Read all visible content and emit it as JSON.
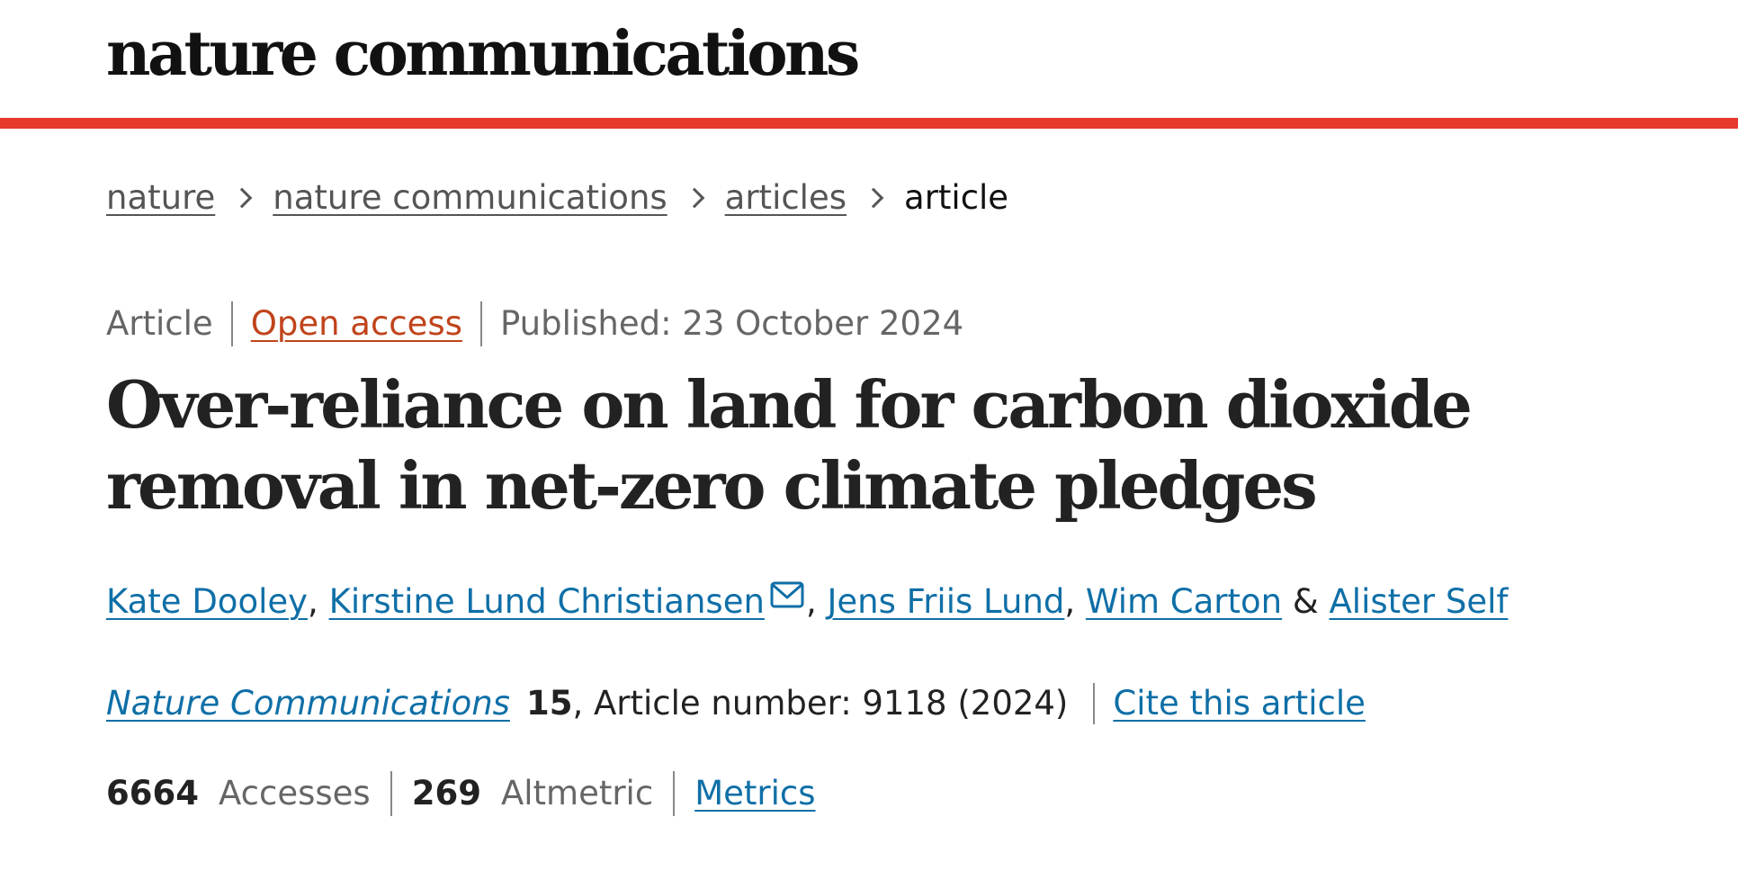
{
  "header": {
    "logo_text": "nature communications",
    "accent_color": "#e8392f"
  },
  "breadcrumb": {
    "items": [
      "nature",
      "nature communications",
      "articles"
    ],
    "current": "article"
  },
  "meta": {
    "type": "Article",
    "open_access": "Open access",
    "published": "Published: 23 October 2024"
  },
  "title": "Over-reliance on land for carbon dioxide removal in net-zero climate pledges",
  "authors": {
    "list": [
      "Kate Dooley",
      "Kirstine Lund Christiansen",
      "Jens Friis Lund",
      "Wim Carton",
      "Alister Self"
    ],
    "comma": ",",
    "ampersand": "&",
    "contact_icon": "mail-icon"
  },
  "citation": {
    "journal": "Nature Communications",
    "volume": "15",
    "article_number": ", Article number: 9118 (2024)",
    "cite_link": "Cite this article"
  },
  "metrics": {
    "accesses_count": "6664",
    "accesses_label": "Accesses",
    "altmetric_count": "269",
    "altmetric_label": "Altmetric",
    "metrics_link": "Metrics"
  }
}
